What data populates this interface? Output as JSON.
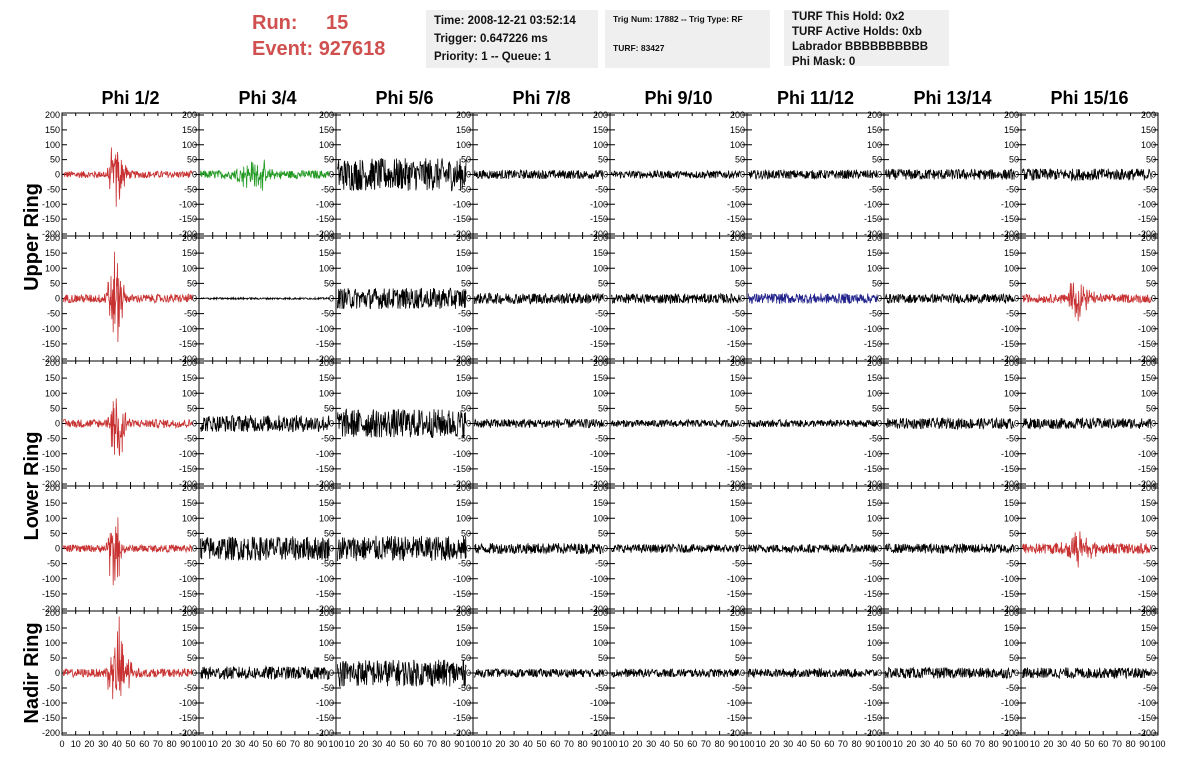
{
  "header": {
    "run_label": "Run:",
    "run_value": "15",
    "event_label": "Event:",
    "event_value": "927618"
  },
  "info_time": {
    "time": "Time: 2008-12-21 03:52:14",
    "trigger": "Trigger: 0.647226 ms",
    "priority": "Priority: 1 -- Queue: 1"
  },
  "info_trig": {
    "trig": "Trig Num: 17882 -- Trig Type: RF",
    "turf": "TURF: 83427"
  },
  "info_turf": {
    "hold": "TURF This Hold: 0x2",
    "active": "TURF Active Holds: 0xb",
    "labrador": "Labrador BBBBBBBBBB",
    "phimask": "Phi Mask: 0"
  },
  "chart_data": {
    "type": "line",
    "columns": [
      "Phi 1/2",
      "Phi 3/4",
      "Phi 5/6",
      "Phi 7/8",
      "Phi 9/10",
      "Phi 11/12",
      "Phi 13/14",
      "Phi 15/16"
    ],
    "rings": [
      "Upper Ring",
      "Lower Ring",
      "Nadir Ring"
    ],
    "rows_per_ring": [
      2,
      2,
      1
    ],
    "xlim": [
      0,
      100
    ],
    "ylim": [
      -200,
      200
    ],
    "y_ticks": [
      -200,
      -150,
      -100,
      -50,
      0,
      50,
      100,
      150,
      200
    ],
    "x_ticks": [
      0,
      10,
      20,
      30,
      40,
      50,
      60,
      70,
      80,
      90,
      100
    ],
    "colors": {
      "normal": "#000000",
      "red": "#c83232",
      "green": "#229922",
      "blue": "#22228c"
    },
    "waveforms": [
      [
        {
          "color": "red",
          "noise": 12,
          "burst": {
            "center": 40,
            "width": 6,
            "amp": 85
          },
          "length": 95
        },
        {
          "color": "green",
          "noise": 14,
          "burst": {
            "center": 40,
            "width": 14,
            "amp": 35
          },
          "length": 95
        },
        {
          "color": "normal",
          "noise": 55,
          "length": 95
        },
        {
          "color": "normal",
          "noise": 15,
          "length": 95
        },
        {
          "color": "normal",
          "noise": 13,
          "length": 95
        },
        {
          "color": "normal",
          "noise": 15,
          "length": 95
        },
        {
          "color": "normal",
          "noise": 18,
          "length": 95
        },
        {
          "color": "normal",
          "noise": 20,
          "length": 95
        }
      ],
      [
        {
          "color": "red",
          "noise": 14,
          "burst": {
            "center": 39,
            "width": 5,
            "amp": 140
          },
          "length": 95
        },
        {
          "color": "normal",
          "noise": 3,
          "length": 95
        },
        {
          "color": "normal",
          "noise": 35,
          "length": 95
        },
        {
          "color": "normal",
          "noise": 18,
          "length": 95
        },
        {
          "color": "normal",
          "noise": 16,
          "length": 95
        },
        {
          "color": "blue",
          "noise": 17,
          "length": 95
        },
        {
          "color": "normal",
          "noise": 15,
          "length": 95
        },
        {
          "color": "red",
          "noise": 14,
          "burst": {
            "center": 42,
            "width": 8,
            "amp": 55
          },
          "length": 95
        }
      ],
      [
        {
          "color": "red",
          "noise": 14,
          "burst": {
            "center": 41,
            "width": 6,
            "amp": 100
          },
          "length": 95
        },
        {
          "color": "normal",
          "noise": 28,
          "length": 95
        },
        {
          "color": "normal",
          "noise": 48,
          "length": 95
        },
        {
          "color": "normal",
          "noise": 15,
          "length": 95
        },
        {
          "color": "normal",
          "noise": 12,
          "length": 95
        },
        {
          "color": "normal",
          "noise": 12,
          "length": 95
        },
        {
          "color": "normal",
          "noise": 18,
          "length": 95
        },
        {
          "color": "normal",
          "noise": 18,
          "length": 95
        }
      ],
      [
        {
          "color": "red",
          "noise": 12,
          "burst": {
            "center": 38,
            "width": 5,
            "amp": 110
          },
          "length": 95
        },
        {
          "color": "normal",
          "noise": 40,
          "length": 95
        },
        {
          "color": "normal",
          "noise": 42,
          "length": 95
        },
        {
          "color": "normal",
          "noise": 18,
          "length": 95
        },
        {
          "color": "normal",
          "noise": 14,
          "length": 95
        },
        {
          "color": "normal",
          "noise": 14,
          "length": 95
        },
        {
          "color": "normal",
          "noise": 16,
          "length": 95
        },
        {
          "color": "red",
          "noise": 18,
          "burst": {
            "center": 42,
            "width": 10,
            "amp": 40
          },
          "length": 95
        }
      ],
      [
        {
          "color": "red",
          "noise": 14,
          "burst": {
            "center": 42,
            "width": 7,
            "amp": 130
          },
          "length": 95
        },
        {
          "color": "normal",
          "noise": 22,
          "length": 95
        },
        {
          "color": "normal",
          "noise": 45,
          "length": 95
        },
        {
          "color": "normal",
          "noise": 14,
          "length": 95
        },
        {
          "color": "normal",
          "noise": 14,
          "length": 95
        },
        {
          "color": "normal",
          "noise": 14,
          "length": 95
        },
        {
          "color": "normal",
          "noise": 18,
          "length": 95
        },
        {
          "color": "normal",
          "noise": 18,
          "length": 95
        }
      ]
    ]
  }
}
